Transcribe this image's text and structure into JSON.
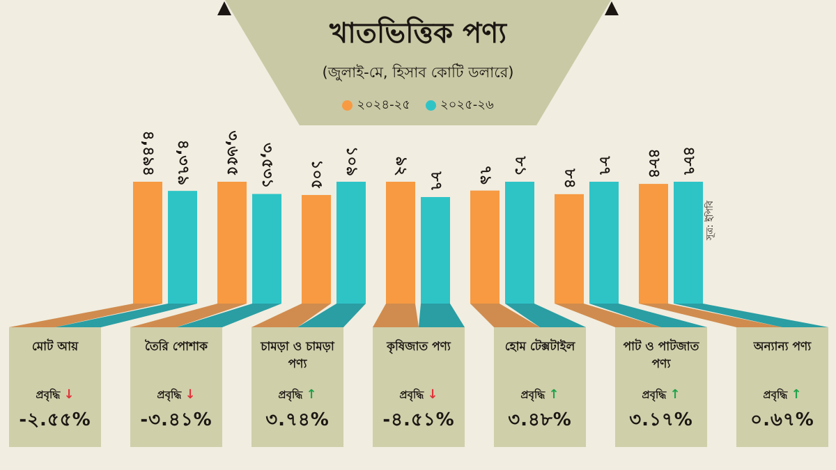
{
  "chart_data": {
    "type": "bar",
    "title": "খাতভিত্তিক পণ্য",
    "subtitle": "(জুলাই-মে, হিসাব কোটি ডলারে)",
    "source": "সূত্র: ইপিবি",
    "categories": [
      "মোট আয়",
      "তৈরি পোশাক",
      "চামড়া ও চামড়া পণ্য",
      "কৃষিজাত পণ্য",
      "হোম টেক্সটাইল",
      "পাট ও পাটজাত পণ্য",
      "অন্যান্য পণ্য"
    ],
    "series": [
      {
        "name": "২০২৪-২৫",
        "color": "#f79a42",
        "values": [
          4494,
          3655,
          105,
          92,
          79,
          84,
          484
        ],
        "labels": [
          "৪,৪৯৪",
          "৩,৬৫৫",
          "১০৫",
          "৯২",
          "৭৯",
          "৮৪",
          "৪৮৪"
        ]
      },
      {
        "name": "২০২৫-২৬",
        "color": "#2ec4c6",
        "values": [
          4379,
          3531,
          109,
          87,
          81,
          87,
          487
        ],
        "labels": [
          "৪,৩৭৯",
          "৩,৫৩১",
          "১০৯",
          "৮৭",
          "৮১",
          "৮৭",
          "৪৮৭"
        ]
      }
    ],
    "growth": [
      {
        "label": "প্রবৃদ্ধি",
        "direction": "down",
        "value": "-২.৫৫%"
      },
      {
        "label": "প্রবৃদ্ধি",
        "direction": "down",
        "value": "-৩.৪১%"
      },
      {
        "label": "প্রবৃদ্ধি",
        "direction": "up",
        "value": "৩.৭৪%"
      },
      {
        "label": "প্রবৃদ্ধি",
        "direction": "down",
        "value": "-৪.৫১%"
      },
      {
        "label": "প্রবৃদ্ধি",
        "direction": "up",
        "value": "৩.৪৮%"
      },
      {
        "label": "প্রবৃদ্ধি",
        "direction": "up",
        "value": "৩.১৭%"
      },
      {
        "label": "প্রবৃদ্ধি",
        "direction": "up",
        "value": "০.৬৭%"
      }
    ]
  },
  "colors": {
    "background": "#f1ede0",
    "banner": "#c9c9a5",
    "card": "#cfcfaa",
    "orange": "#f79a42",
    "teal": "#2ec4c6",
    "arrow_down": "#e0333a",
    "arrow_up": "#1ea34a"
  }
}
